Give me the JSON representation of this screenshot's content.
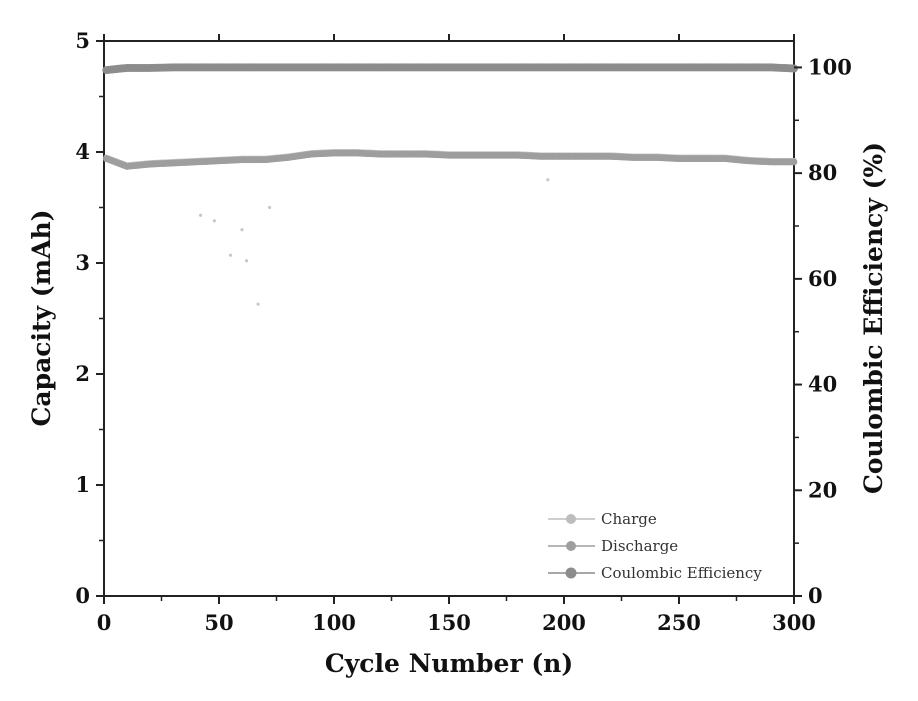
{
  "chart_data": {
    "type": "scatter",
    "title": "",
    "xlabel": "Cycle Number (n)",
    "ylabel_left": "Capacity (mAh)",
    "ylabel_right": "Coulombic Efficiency (%)",
    "xlim": [
      0,
      300
    ],
    "ylim_left": [
      0,
      5
    ],
    "ylim_right": [
      0,
      105
    ],
    "x_ticks": [
      "0",
      "50",
      "100",
      "150",
      "200",
      "250",
      "300"
    ],
    "y_left_ticks": [
      "0",
      "1",
      "2",
      "3",
      "4",
      "5"
    ],
    "y_right_ticks": [
      "0",
      "20",
      "40",
      "60",
      "80",
      "100"
    ],
    "grid": false,
    "legend_position": "bottom-right",
    "series": [
      {
        "name": "Charge",
        "axis": "left",
        "color": "#bdbdbd",
        "x": [
          1,
          10,
          20,
          30,
          40,
          50,
          60,
          70,
          80,
          90,
          100,
          110,
          120,
          130,
          140,
          150,
          160,
          170,
          180,
          190,
          200,
          210,
          220,
          230,
          240,
          250,
          260,
          270,
          280,
          290,
          300
        ],
        "values": [
          3.95,
          3.88,
          3.9,
          3.91,
          3.92,
          3.93,
          3.94,
          3.94,
          3.96,
          3.99,
          4.0,
          4.0,
          3.99,
          3.99,
          3.99,
          3.98,
          3.98,
          3.98,
          3.98,
          3.97,
          3.97,
          3.97,
          3.97,
          3.96,
          3.96,
          3.95,
          3.95,
          3.95,
          3.93,
          3.92,
          3.92
        ],
        "outliers": [
          {
            "x": 42,
            "y": 3.43
          },
          {
            "x": 48,
            "y": 3.38
          },
          {
            "x": 55,
            "y": 3.07
          },
          {
            "x": 60,
            "y": 3.3
          },
          {
            "x": 62,
            "y": 3.02
          },
          {
            "x": 67,
            "y": 2.63
          },
          {
            "x": 72,
            "y": 3.5
          },
          {
            "x": 193,
            "y": 3.75
          }
        ]
      },
      {
        "name": "Discharge",
        "axis": "left",
        "color": "#9e9e9e",
        "x": [
          1,
          10,
          20,
          30,
          40,
          50,
          60,
          70,
          80,
          90,
          100,
          110,
          120,
          130,
          140,
          150,
          160,
          170,
          180,
          190,
          200,
          210,
          220,
          230,
          240,
          250,
          260,
          270,
          280,
          290,
          300
        ],
        "values": [
          3.94,
          3.87,
          3.89,
          3.9,
          3.91,
          3.92,
          3.93,
          3.93,
          3.95,
          3.98,
          3.99,
          3.99,
          3.98,
          3.98,
          3.98,
          3.97,
          3.97,
          3.97,
          3.97,
          3.96,
          3.96,
          3.96,
          3.96,
          3.95,
          3.95,
          3.94,
          3.94,
          3.94,
          3.92,
          3.91,
          3.91
        ]
      },
      {
        "name": "Coulombic Efficiency",
        "axis": "right",
        "color": "#8c8c8c",
        "x": [
          1,
          10,
          20,
          30,
          40,
          50,
          60,
          70,
          80,
          90,
          100,
          110,
          120,
          130,
          140,
          150,
          160,
          170,
          180,
          190,
          200,
          210,
          220,
          230,
          240,
          250,
          260,
          270,
          280,
          290,
          300
        ],
        "values": [
          99.5,
          99.9,
          99.9,
          100,
          100,
          100,
          100,
          100,
          100,
          100,
          100,
          100,
          100,
          100,
          100,
          100,
          100,
          100,
          100,
          100,
          100,
          100,
          100,
          100,
          100,
          100,
          100,
          100,
          100,
          100,
          99.8
        ]
      }
    ]
  }
}
